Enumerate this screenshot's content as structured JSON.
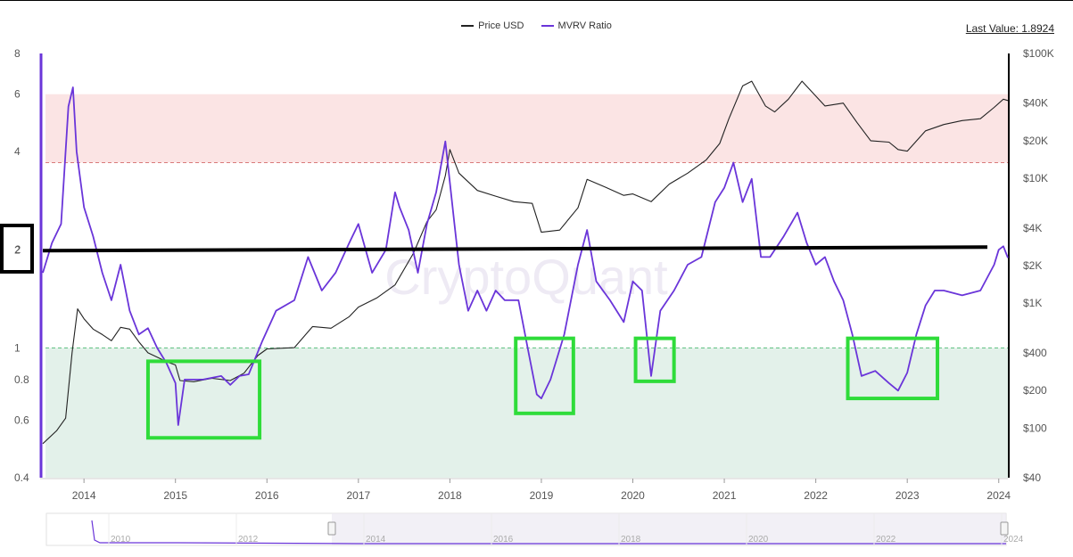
{
  "header": {
    "last_value_label": "Last Value: 1.8924",
    "watermark": "CryptoQuant"
  },
  "legend": [
    {
      "name": "Price USD",
      "color": "#222222"
    },
    {
      "name": "MVRV Ratio",
      "color": "#6a35d9"
    }
  ],
  "colors": {
    "price_line": "#222222",
    "mvrv_line": "#6a35d9",
    "danger_zone": "#fbe4e4",
    "danger_line": "#d97a7a",
    "safe_zone": "#e3f1ea",
    "safe_line": "#5cbf7f",
    "highlight_box": "#2fdc3a",
    "annotation": "#000000"
  },
  "navigator": {
    "years": [
      "2010",
      "2012",
      "2014",
      "2016",
      "2018",
      "2020",
      "2022",
      "2024"
    ]
  },
  "chart_data": {
    "type": "line",
    "title": "",
    "xlabel": "",
    "x_ticks": [
      "2014",
      "2015",
      "2016",
      "2017",
      "2018",
      "2019",
      "2020",
      "2021",
      "2022",
      "2023",
      "2024"
    ],
    "xlim": [
      2013.55,
      2024.1
    ],
    "y_left": {
      "scale": "log",
      "ticks": [
        "0.4",
        "0.6",
        "0.8",
        "1",
        "2",
        "4",
        "6",
        "8"
      ],
      "lim": [
        0.4,
        8
      ]
    },
    "y_right": {
      "scale": "log",
      "ticks": [
        "$40",
        "$100",
        "$200",
        "$400",
        "$1K",
        "$2K",
        "$4K",
        "$10K",
        "$20K",
        "$40K",
        "$100K"
      ],
      "lim": [
        40,
        100000
      ]
    },
    "zones": {
      "overvalued_from": 3.7,
      "overvalued_to": 6,
      "undervalued_from": 0.4,
      "undervalued_to": 1
    },
    "annotations": {
      "horizontal_line_value": 2,
      "left_marker_label": "2",
      "highlight_boxes": [
        {
          "x_from": 2014.7,
          "x_to": 2015.92,
          "y_from": 0.53,
          "y_to": 0.91
        },
        {
          "x_from": 2018.72,
          "x_to": 2019.35,
          "y_from": 0.63,
          "y_to": 1.07
        },
        {
          "x_from": 2020.03,
          "x_to": 2020.45,
          "y_from": 0.79,
          "y_to": 1.07
        },
        {
          "x_from": 2022.35,
          "x_to": 2023.33,
          "y_from": 0.7,
          "y_to": 1.07
        }
      ]
    },
    "series": [
      {
        "name": "Price USD",
        "axis": "right",
        "x": [
          2013.55,
          2013.7,
          2013.8,
          2013.87,
          2013.93,
          2014.0,
          2014.1,
          2014.2,
          2014.3,
          2014.4,
          2014.5,
          2014.6,
          2014.7,
          2014.8,
          2014.9,
          2015.0,
          2015.05,
          2015.2,
          2015.4,
          2015.6,
          2015.75,
          2015.9,
          2016.0,
          2016.3,
          2016.5,
          2016.7,
          2016.9,
          2017.0,
          2017.2,
          2017.4,
          2017.6,
          2017.75,
          2017.85,
          2017.95,
          2018.0,
          2018.1,
          2018.3,
          2018.5,
          2018.7,
          2018.9,
          2019.0,
          2019.2,
          2019.4,
          2019.5,
          2019.7,
          2019.9,
          2020.0,
          2020.2,
          2020.4,
          2020.6,
          2020.8,
          2020.95,
          2021.05,
          2021.2,
          2021.3,
          2021.45,
          2021.55,
          2021.7,
          2021.85,
          2021.95,
          2022.1,
          2022.3,
          2022.45,
          2022.6,
          2022.8,
          2022.9,
          2023.0,
          2023.2,
          2023.4,
          2023.6,
          2023.8,
          2023.95,
          2024.05,
          2024.1
        ],
        "values": [
          75,
          95,
          120,
          400,
          900,
          750,
          620,
          560,
          500,
          640,
          620,
          490,
          400,
          370,
          340,
          320,
          240,
          235,
          250,
          240,
          275,
          380,
          430,
          440,
          650,
          630,
          780,
          930,
          1100,
          1400,
          2500,
          4500,
          5600,
          10500,
          17000,
          11000,
          8000,
          7200,
          6500,
          6300,
          3700,
          3850,
          5800,
          9800,
          8500,
          7300,
          7500,
          6500,
          9000,
          11000,
          14000,
          19000,
          30000,
          55000,
          60000,
          38000,
          34000,
          43000,
          60000,
          50000,
          38000,
          40000,
          28000,
          20000,
          19500,
          17000,
          16500,
          24000,
          27000,
          29000,
          30000,
          37000,
          43000,
          42000
        ]
      },
      {
        "name": "MVRV Ratio",
        "axis": "left",
        "x": [
          2013.55,
          2013.65,
          2013.75,
          2013.83,
          2013.88,
          2013.92,
          2014.0,
          2014.1,
          2014.2,
          2014.3,
          2014.4,
          2014.5,
          2014.6,
          2014.7,
          2014.8,
          2014.9,
          2015.0,
          2015.03,
          2015.1,
          2015.3,
          2015.5,
          2015.6,
          2015.7,
          2015.8,
          2015.95,
          2016.1,
          2016.3,
          2016.45,
          2016.6,
          2016.75,
          2016.9,
          2017.0,
          2017.15,
          2017.3,
          2017.4,
          2017.45,
          2017.55,
          2017.65,
          2017.75,
          2017.85,
          2017.95,
          2018.05,
          2018.1,
          2018.2,
          2018.3,
          2018.4,
          2018.5,
          2018.6,
          2018.75,
          2018.85,
          2018.95,
          2019.0,
          2019.1,
          2019.25,
          2019.4,
          2019.5,
          2019.6,
          2019.75,
          2019.9,
          2020.0,
          2020.1,
          2020.2,
          2020.3,
          2020.45,
          2020.6,
          2020.75,
          2020.9,
          2021.0,
          2021.1,
          2021.2,
          2021.3,
          2021.4,
          2021.5,
          2021.65,
          2021.8,
          2021.9,
          2022.0,
          2022.1,
          2022.2,
          2022.3,
          2022.4,
          2022.5,
          2022.65,
          2022.8,
          2022.9,
          2023.0,
          2023.1,
          2023.2,
          2023.3,
          2023.4,
          2023.6,
          2023.8,
          2023.95,
          2024.0,
          2024.05,
          2024.1
        ],
        "values": [
          1.7,
          2.1,
          2.4,
          5.5,
          6.3,
          4.0,
          2.7,
          2.2,
          1.7,
          1.4,
          1.8,
          1.3,
          1.1,
          1.15,
          1.0,
          0.9,
          0.78,
          0.58,
          0.8,
          0.8,
          0.82,
          0.77,
          0.82,
          0.83,
          1.05,
          1.3,
          1.4,
          1.9,
          1.5,
          1.7,
          2.1,
          2.4,
          1.7,
          2.0,
          3.0,
          2.7,
          2.3,
          1.7,
          2.4,
          3.0,
          4.3,
          2.4,
          1.8,
          1.3,
          1.5,
          1.3,
          1.5,
          1.4,
          1.4,
          1.0,
          0.72,
          0.7,
          0.8,
          1.1,
          1.8,
          2.3,
          1.6,
          1.4,
          1.2,
          1.6,
          1.5,
          0.82,
          1.3,
          1.5,
          1.8,
          1.9,
          2.8,
          3.1,
          3.7,
          2.8,
          3.3,
          1.9,
          1.9,
          2.2,
          2.6,
          2.1,
          1.8,
          1.9,
          1.6,
          1.4,
          1.1,
          0.82,
          0.85,
          0.78,
          0.74,
          0.84,
          1.1,
          1.35,
          1.5,
          1.5,
          1.45,
          1.5,
          1.8,
          2.0,
          2.05,
          1.89
        ]
      }
    ]
  }
}
